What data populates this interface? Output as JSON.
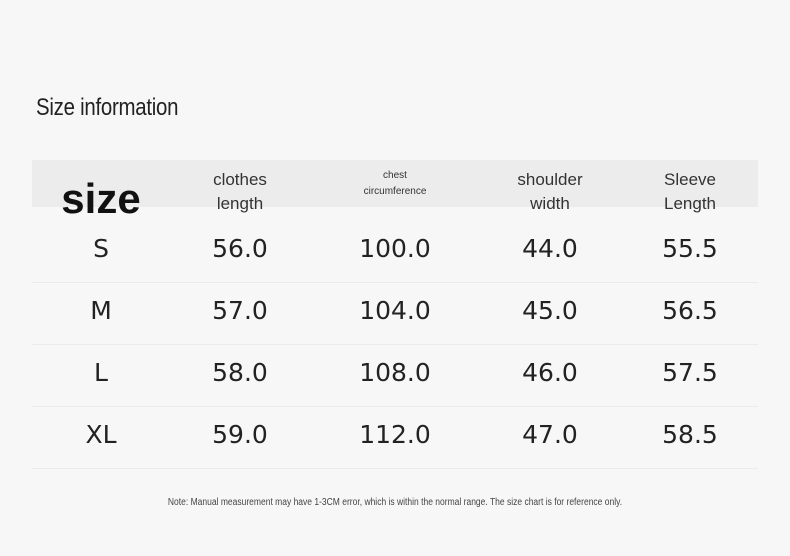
{
  "title": "Size information",
  "table": {
    "header": [
      [
        "size"
      ],
      [
        "clothes",
        "length"
      ],
      [
        "chest",
        "circumference"
      ],
      [
        "shoulder",
        "width"
      ],
      [
        "Sleeve",
        "Length"
      ]
    ],
    "rows": [
      [
        "S",
        "56.0",
        "100.0",
        "44.0",
        "55.5"
      ],
      [
        "M",
        "57.0",
        "104.0",
        "45.0",
        "56.5"
      ],
      [
        "L",
        "58.0",
        "108.0",
        "46.0",
        "57.5"
      ],
      [
        "XL",
        "59.0",
        "112.0",
        "47.0",
        "58.5"
      ]
    ]
  },
  "note": "Note: Manual measurement may have 1-3CM error, which is within the normal range. The size chart is for reference only."
}
